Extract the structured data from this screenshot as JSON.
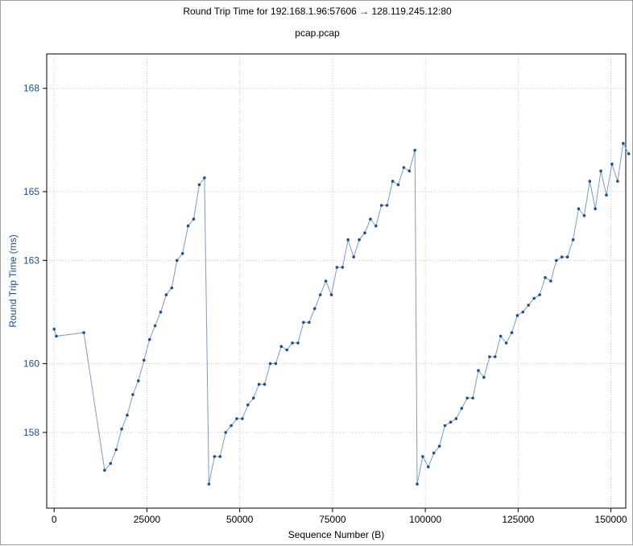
{
  "title": "Round Trip Time for 192.168.1.96:57606 → 128.119.245.12:80",
  "subtitle": "pcap.pcap",
  "colors": {
    "series": "#7a9cc6",
    "point": "#1f4e8c",
    "ytick": "#1f4e8c",
    "ylabel": "#1f4e8c",
    "grid": "#c8c8c8"
  },
  "chart_data": {
    "type": "scatter",
    "xlabel": "Sequence Number (B)",
    "ylabel": "Round Trip Time (ms)",
    "xlim": [
      -2000,
      154000
    ],
    "ylim": [
      155.8,
      169.0
    ],
    "xticks": [
      0,
      25000,
      50000,
      75000,
      100000,
      125000,
      150000
    ],
    "yticks": [
      158,
      160,
      163,
      165,
      168
    ],
    "ytick_labels": [
      "158",
      "160",
      "163",
      "165",
      "168"
    ],
    "grid": true,
    "series": [
      {
        "values": [
          [
            0,
            161.0
          ],
          [
            600,
            160.8
          ],
          [
            8000,
            160.9
          ],
          [
            13600,
            156.9
          ],
          [
            15200,
            157.1
          ],
          [
            16700,
            157.5
          ],
          [
            18200,
            158.1
          ],
          [
            19700,
            158.5
          ],
          [
            21200,
            159.1
          ],
          [
            22700,
            159.5
          ],
          [
            24200,
            160.1
          ],
          [
            25700,
            160.7
          ],
          [
            27200,
            161.1
          ],
          [
            28700,
            161.5
          ],
          [
            30200,
            162.0
          ],
          [
            31700,
            162.2
          ],
          [
            33100,
            163.0
          ],
          [
            34600,
            163.2
          ],
          [
            36100,
            164.0
          ],
          [
            37600,
            164.2
          ],
          [
            39100,
            165.2
          ],
          [
            40500,
            165.4
          ],
          [
            41700,
            156.5
          ],
          [
            43200,
            157.3
          ],
          [
            44700,
            157.3
          ],
          [
            46200,
            158.0
          ],
          [
            47700,
            158.2
          ],
          [
            49200,
            158.4
          ],
          [
            50700,
            158.4
          ],
          [
            52200,
            158.8
          ],
          [
            53700,
            159.0
          ],
          [
            55200,
            159.4
          ],
          [
            56700,
            159.4
          ],
          [
            58200,
            160.0
          ],
          [
            59700,
            160.0
          ],
          [
            61200,
            160.5
          ],
          [
            62700,
            160.4
          ],
          [
            64200,
            160.6
          ],
          [
            65700,
            160.6
          ],
          [
            67200,
            161.2
          ],
          [
            68700,
            161.2
          ],
          [
            70200,
            161.6
          ],
          [
            71700,
            162.0
          ],
          [
            73200,
            162.4
          ],
          [
            74700,
            162.0
          ],
          [
            76200,
            162.8
          ],
          [
            77700,
            162.8
          ],
          [
            79200,
            163.6
          ],
          [
            80700,
            163.1
          ],
          [
            82200,
            163.6
          ],
          [
            83700,
            163.8
          ],
          [
            85200,
            164.2
          ],
          [
            86700,
            164.0
          ],
          [
            88200,
            164.6
          ],
          [
            89700,
            164.6
          ],
          [
            91200,
            165.3
          ],
          [
            92700,
            165.2
          ],
          [
            94200,
            165.7
          ],
          [
            95700,
            165.6
          ],
          [
            97200,
            166.2
          ],
          [
            97800,
            156.5
          ],
          [
            99300,
            157.3
          ],
          [
            100800,
            157.0
          ],
          [
            102300,
            157.4
          ],
          [
            103800,
            157.6
          ],
          [
            105300,
            158.2
          ],
          [
            106800,
            158.3
          ],
          [
            108300,
            158.4
          ],
          [
            109800,
            158.7
          ],
          [
            111300,
            159.0
          ],
          [
            112800,
            159.0
          ],
          [
            114300,
            159.8
          ],
          [
            115800,
            159.6
          ],
          [
            117300,
            160.2
          ],
          [
            118800,
            160.2
          ],
          [
            120300,
            160.8
          ],
          [
            121800,
            160.6
          ],
          [
            123300,
            160.9
          ],
          [
            124800,
            161.4
          ],
          [
            126300,
            161.5
          ],
          [
            127800,
            161.7
          ],
          [
            129300,
            161.9
          ],
          [
            130800,
            162.0
          ],
          [
            132300,
            162.5
          ],
          [
            133800,
            162.4
          ],
          [
            135300,
            163.0
          ],
          [
            136800,
            163.1
          ],
          [
            138300,
            163.1
          ],
          [
            139800,
            163.6
          ],
          [
            141300,
            164.5
          ],
          [
            142800,
            164.3
          ],
          [
            144300,
            165.3
          ],
          [
            145800,
            164.5
          ],
          [
            147300,
            165.6
          ],
          [
            148800,
            164.9
          ],
          [
            150300,
            165.8
          ],
          [
            151800,
            165.3
          ],
          [
            153300,
            166.4
          ],
          [
            154800,
            166.1
          ]
        ]
      }
    ]
  }
}
